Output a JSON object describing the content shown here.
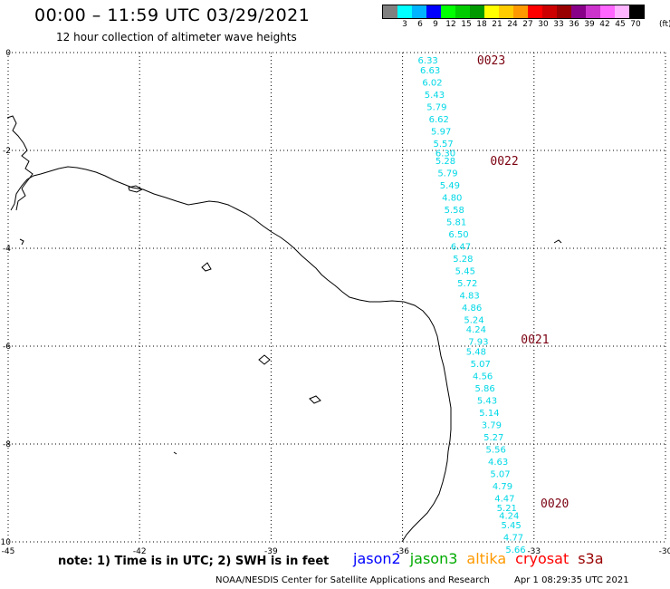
{
  "header": {
    "title": "00:00 – 11:59 UTC 03/29/2021",
    "subtitle": "12 hour collection of altimeter wave heights"
  },
  "legend": {
    "unit": "(ft)",
    "bins": [
      {
        "label": "",
        "color": "#808080"
      },
      {
        "label": "3",
        "color": "#00ffff"
      },
      {
        "label": "6",
        "color": "#00b4ff"
      },
      {
        "label": "9",
        "color": "#0000ff"
      },
      {
        "label": "12",
        "color": "#00ff00"
      },
      {
        "label": "15",
        "color": "#00cc00"
      },
      {
        "label": "18",
        "color": "#009900"
      },
      {
        "label": "21",
        "color": "#ffff00"
      },
      {
        "label": "24",
        "color": "#ffcc00"
      },
      {
        "label": "27",
        "color": "#ff9900"
      },
      {
        "label": "30",
        "color": "#ff0000"
      },
      {
        "label": "33",
        "color": "#cc0000"
      },
      {
        "label": "36",
        "color": "#990000"
      },
      {
        "label": "39",
        "color": "#880088"
      },
      {
        "label": "42",
        "color": "#cc33cc"
      },
      {
        "label": "45",
        "color": "#ff66ff"
      },
      {
        "label": "70",
        "color": "#ffb4ff"
      },
      {
        "label": "",
        "color": "#000000"
      }
    ]
  },
  "map": {
    "lon_ticks": [
      "-45",
      "-42",
      "-39",
      "-36",
      "-33",
      "-30"
    ],
    "lat_ticks": [
      "0",
      "-2",
      "-4",
      "-6",
      "-8",
      "-10"
    ],
    "lon_range": [
      -45,
      -30
    ],
    "lat_range": [
      -10,
      0
    ],
    "track_color": "#00d8e6",
    "pass_color": "#7a0010",
    "passes": [
      {
        "label": "0023",
        "lon": -34.3,
        "lat": -0.15
      },
      {
        "label": "0022",
        "lon": -34.0,
        "lat": -2.2
      },
      {
        "label": "0021",
        "lon": -33.3,
        "lat": -5.85
      },
      {
        "label": "0020",
        "lon": -32.85,
        "lat": -9.2
      }
    ],
    "wave_heights": [
      {
        "v": "6.33",
        "lon": -35.65,
        "lat": -0.15
      },
      {
        "v": "6.63",
        "lon": -35.6,
        "lat": -0.35
      },
      {
        "v": "6.02",
        "lon": -35.55,
        "lat": -0.6
      },
      {
        "v": "5.43",
        "lon": -35.5,
        "lat": -0.85
      },
      {
        "v": "5.79",
        "lon": -35.45,
        "lat": -1.1
      },
      {
        "v": "6.62",
        "lon": -35.4,
        "lat": -1.35
      },
      {
        "v": "5.97",
        "lon": -35.35,
        "lat": -1.6
      },
      {
        "v": "5.57",
        "lon": -35.3,
        "lat": -1.85
      },
      {
        "v": "6.30",
        "lon": -35.25,
        "lat": -2.05
      },
      {
        "v": "5.28",
        "lon": -35.25,
        "lat": -2.2
      },
      {
        "v": "5.79",
        "lon": -35.2,
        "lat": -2.45
      },
      {
        "v": "5.49",
        "lon": -35.15,
        "lat": -2.7
      },
      {
        "v": "4.80",
        "lon": -35.1,
        "lat": -2.95
      },
      {
        "v": "5.58",
        "lon": -35.05,
        "lat": -3.2
      },
      {
        "v": "5.81",
        "lon": -35.0,
        "lat": -3.45
      },
      {
        "v": "6.50",
        "lon": -34.95,
        "lat": -3.7
      },
      {
        "v": "6.47",
        "lon": -34.9,
        "lat": -3.95
      },
      {
        "v": "5.28",
        "lon": -34.85,
        "lat": -4.2
      },
      {
        "v": "5.45",
        "lon": -34.8,
        "lat": -4.45
      },
      {
        "v": "5.72",
        "lon": -34.75,
        "lat": -4.7
      },
      {
        "v": "4.83",
        "lon": -34.7,
        "lat": -4.95
      },
      {
        "v": "4.86",
        "lon": -34.65,
        "lat": -5.2
      },
      {
        "v": "5.24",
        "lon": -34.6,
        "lat": -5.45
      },
      {
        "v": "4.24",
        "lon": -34.55,
        "lat": -5.65
      },
      {
        "v": "7.93",
        "lon": -34.5,
        "lat": -5.9
      },
      {
        "v": "5.48",
        "lon": -34.55,
        "lat": -6.1
      },
      {
        "v": "5.07",
        "lon": -34.45,
        "lat": -6.35
      },
      {
        "v": "4.56",
        "lon": -34.4,
        "lat": -6.6
      },
      {
        "v": "5.86",
        "lon": -34.35,
        "lat": -6.85
      },
      {
        "v": "5.43",
        "lon": -34.3,
        "lat": -7.1
      },
      {
        "v": "5.14",
        "lon": -34.25,
        "lat": -7.35
      },
      {
        "v": "3.79",
        "lon": -34.2,
        "lat": -7.6
      },
      {
        "v": "5.27",
        "lon": -34.15,
        "lat": -7.85
      },
      {
        "v": "5.56",
        "lon": -34.1,
        "lat": -8.1
      },
      {
        "v": "4.63",
        "lon": -34.05,
        "lat": -8.35
      },
      {
        "v": "5.07",
        "lon": -34.0,
        "lat": -8.6
      },
      {
        "v": "4.79",
        "lon": -33.95,
        "lat": -8.85
      },
      {
        "v": "4.47",
        "lon": -33.9,
        "lat": -9.1
      },
      {
        "v": "5.21",
        "lon": -33.85,
        "lat": -9.3
      },
      {
        "v": "4.24",
        "lon": -33.8,
        "lat": -9.45
      },
      {
        "v": "5.45",
        "lon": -33.75,
        "lat": -9.65
      },
      {
        "v": "4.77",
        "lon": -33.7,
        "lat": -9.9
      },
      {
        "v": "5.66",
        "lon": -33.65,
        "lat": -10.15
      }
    ]
  },
  "footer": {
    "note": "note: 1) Time is in UTC; 2) SWH is in feet",
    "satellites": [
      {
        "name": "jason2",
        "color": "#0000ff"
      },
      {
        "name": "jason3",
        "color": "#00aa00"
      },
      {
        "name": "altika",
        "color": "#ff9900"
      },
      {
        "name": "cryosat",
        "color": "#ff0000"
      },
      {
        "name": "s3a",
        "color": "#990000"
      }
    ],
    "credit": "NOAA/NESDIS Center for Satellite Applications and Research",
    "timestamp": "Apr  1 08:29:35 UTC 2021"
  }
}
